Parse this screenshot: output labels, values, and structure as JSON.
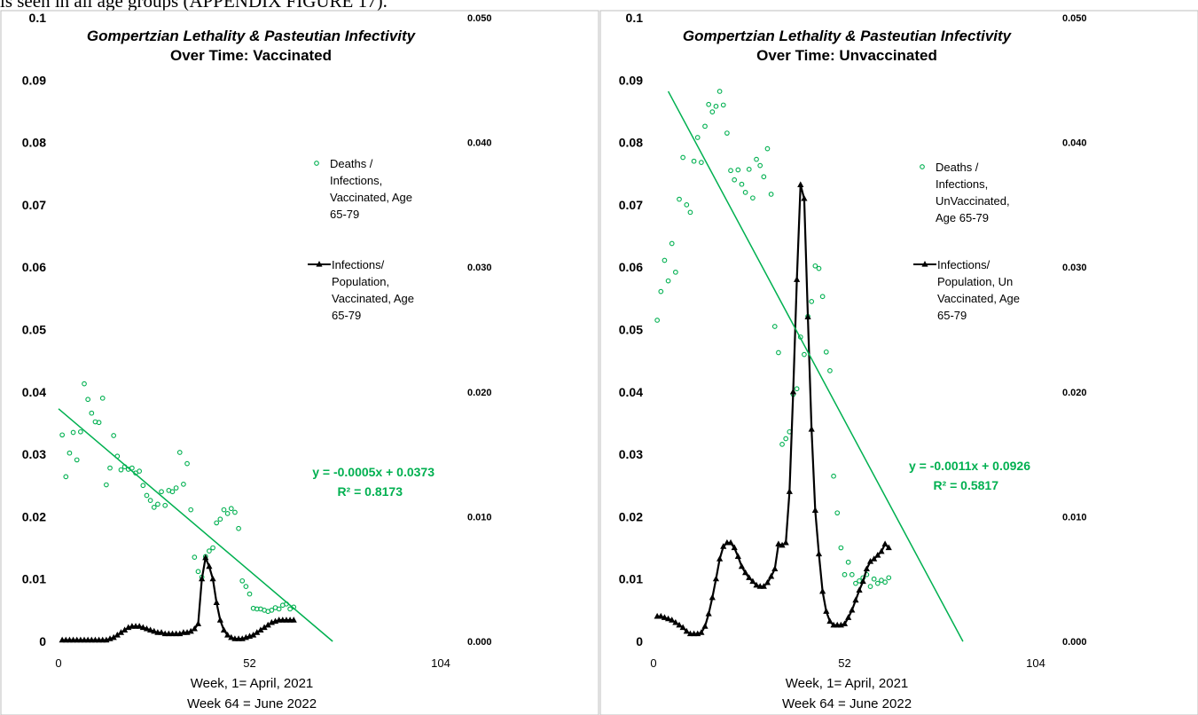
{
  "header_text": "is seen in all age groups (APPENDIX FIGURE 17).",
  "colors": {
    "green": "#00B050",
    "black": "#000000",
    "frame": "#BFBFBF"
  },
  "chart_data": [
    {
      "type": "scatter",
      "title_line1": "Gompertzian Lethality & Pasteutian Infectivity",
      "title_line2": "Over Time: Vaccinated",
      "xlabel_line1": "Week, 1= April, 2021",
      "xlabel_line2": "Week 64 = June 2022",
      "xlim": [
        0,
        104
      ],
      "x_ticks": [
        "0",
        "52",
        "104"
      ],
      "ylim_left": [
        0,
        0.1
      ],
      "y_ticks_left": [
        "0",
        "0.01",
        "0.02",
        "0.03",
        "0.04",
        "0.05",
        "0.06",
        "0.07",
        "0.08",
        "0.09",
        "0.1"
      ],
      "ylim_right": [
        0,
        0.05
      ],
      "y_ticks_right": [
        "0.000",
        "0.010",
        "0.020",
        "0.030",
        "0.040",
        "0.050"
      ],
      "legend_position": "right",
      "series": [
        {
          "name": "Deaths / Infections, Vaccinated, Age 65-79",
          "legend_lines": [
            "Deaths /",
            "Infections,",
            "Vaccinated, Age",
            "65-79"
          ],
          "kind": "scatter",
          "axis": "left",
          "color": "#00B050",
          "x": [
            1,
            2,
            3,
            4,
            5,
            6,
            7,
            8,
            9,
            10,
            11,
            12,
            13,
            14,
            15,
            16,
            17,
            18,
            19,
            20,
            21,
            22,
            23,
            24,
            25,
            26,
            27,
            28,
            29,
            30,
            31,
            32,
            33,
            34,
            35,
            36,
            37,
            38,
            39,
            40,
            41,
            42,
            43,
            44,
            45,
            46,
            47,
            48,
            49,
            50,
            51,
            52,
            53,
            54,
            55,
            56,
            57,
            58,
            59,
            60,
            61,
            62,
            63,
            64
          ],
          "y": [
            0.0331,
            0.0264,
            0.0302,
            0.0335,
            0.0291,
            0.0336,
            0.0413,
            0.0388,
            0.0366,
            0.0352,
            0.0351,
            0.039,
            0.0251,
            0.0278,
            0.033,
            0.0297,
            0.0275,
            0.028,
            0.0276,
            0.0278,
            0.027,
            0.0273,
            0.025,
            0.0234,
            0.0226,
            0.0215,
            0.022,
            0.024,
            0.0218,
            0.0242,
            0.024,
            0.0246,
            0.0303,
            0.0252,
            0.0285,
            0.0211,
            0.0135,
            0.0112,
            0.0103,
            0.0136,
            0.0145,
            0.015,
            0.019,
            0.0196,
            0.0211,
            0.0205,
            0.0213,
            0.0207,
            0.0181,
            0.0097,
            0.0088,
            0.0076,
            0.0053,
            0.0052,
            0.0052,
            0.005,
            0.0048,
            0.005,
            0.0054,
            0.0052,
            0.0058,
            0.006,
            0.0052,
            0.0055
          ]
        },
        {
          "name": "Infections/ Population, Vaccinated, Age 65-79",
          "legend_lines": [
            "Infections/",
            "Population,",
            "Vaccinated, Age",
            "65-79"
          ],
          "kind": "line",
          "axis": "right",
          "color": "#000000",
          "x": [
            1,
            2,
            3,
            4,
            5,
            6,
            7,
            8,
            9,
            10,
            11,
            12,
            13,
            14,
            15,
            16,
            17,
            18,
            19,
            20,
            21,
            22,
            23,
            24,
            25,
            26,
            27,
            28,
            29,
            30,
            31,
            32,
            33,
            34,
            35,
            36,
            37,
            38,
            39,
            40,
            41,
            42,
            43,
            44,
            45,
            46,
            47,
            48,
            49,
            50,
            51,
            52,
            53,
            54,
            55,
            56,
            57,
            58,
            59,
            60,
            61,
            62,
            63,
            64
          ],
          "y": [
            0.0001,
            0.0001,
            0.0001,
            0.0001,
            0.0001,
            0.0001,
            0.0001,
            0.0001,
            0.0001,
            0.0001,
            0.0001,
            0.0001,
            0.0001,
            0.0002,
            0.0003,
            0.0005,
            0.0007,
            0.0009,
            0.0011,
            0.0012,
            0.0012,
            0.0012,
            0.0011,
            0.001,
            0.0009,
            0.0008,
            0.0007,
            0.0007,
            0.0006,
            0.0006,
            0.0006,
            0.0006,
            0.0006,
            0.0007,
            0.0007,
            0.0008,
            0.001,
            0.0014,
            0.005,
            0.0067,
            0.006,
            0.005,
            0.0031,
            0.0017,
            0.0009,
            0.0005,
            0.0003,
            0.0002,
            0.0002,
            0.0002,
            0.0003,
            0.0004,
            0.0005,
            0.0007,
            0.0009,
            0.0011,
            0.0013,
            0.0015,
            0.0016,
            0.0017,
            0.0017,
            0.0017,
            0.0017,
            0.0017
          ]
        },
        {
          "name": "Linear trend (Deaths / Infections)",
          "kind": "trend",
          "axis": "left",
          "color": "#00B050",
          "slope": -0.0005,
          "intercept": 0.0373,
          "x_range": [
            0,
            74.6
          ],
          "equation": "y = -0.0005x + 0.0373",
          "r2": "R² = 0.8173"
        }
      ]
    },
    {
      "type": "scatter",
      "title_line1": "Gompertzian Lethality & Pasteutian Infectivity",
      "title_line2": "Over Time: Unvaccinated",
      "xlabel_line1": "Week, 1= April, 2021",
      "xlabel_line2": "Week 64 = June 2022",
      "xlim": [
        0,
        104
      ],
      "x_ticks": [
        "0",
        "52",
        "104"
      ],
      "ylim_left": [
        0,
        0.1
      ],
      "y_ticks_left": [
        "0",
        "0.01",
        "0.02",
        "0.03",
        "0.04",
        "0.05",
        "0.06",
        "0.07",
        "0.08",
        "0.09",
        "0.1"
      ],
      "ylim_right": [
        0,
        0.05
      ],
      "y_ticks_right": [
        "0.000",
        "0.010",
        "0.020",
        "0.030",
        "0.040",
        "0.050"
      ],
      "legend_position": "right",
      "series": [
        {
          "name": "Deaths / Infections, UnVaccinated, Age 65-79",
          "legend_lines": [
            "Deaths /",
            "Infections,",
            "UnVaccinated,",
            "Age 65-79"
          ],
          "kind": "scatter",
          "axis": "left",
          "color": "#00B050",
          "x": [
            1,
            2,
            3,
            4,
            5,
            6,
            7,
            8,
            9,
            10,
            11,
            12,
            13,
            14,
            15,
            16,
            17,
            18,
            19,
            20,
            21,
            22,
            23,
            24,
            25,
            26,
            27,
            28,
            29,
            30,
            31,
            32,
            33,
            34,
            35,
            36,
            37,
            38,
            39,
            40,
            41,
            42,
            43,
            44,
            45,
            46,
            47,
            48,
            49,
            50,
            51,
            52,
            53,
            54,
            55,
            56,
            57,
            58,
            59,
            60,
            61,
            62,
            63,
            64
          ],
          "y": [
            0.0515,
            0.0561,
            0.0611,
            0.0578,
            0.0638,
            0.0592,
            0.0709,
            0.0776,
            0.07,
            0.0688,
            0.077,
            0.0808,
            0.0768,
            0.0826,
            0.0861,
            0.0849,
            0.0858,
            0.0882,
            0.086,
            0.0815,
            0.0755,
            0.074,
            0.0756,
            0.0733,
            0.072,
            0.0757,
            0.0711,
            0.0773,
            0.0763,
            0.0745,
            0.079,
            0.0717,
            0.0505,
            0.0463,
            0.0316,
            0.0325,
            0.0336,
            0.0396,
            0.0405,
            0.0488,
            0.046,
            0.0521,
            0.0545,
            0.0602,
            0.0598,
            0.0553,
            0.0464,
            0.0434,
            0.0265,
            0.0206,
            0.015,
            0.0107,
            0.0127,
            0.0107,
            0.0093,
            0.0097,
            0.0102,
            0.0107,
            0.0088,
            0.01,
            0.0093,
            0.0098,
            0.0095,
            0.0102
          ]
        },
        {
          "name": "Infections/ Population, Un Vaccinated, Age 65-79",
          "legend_lines": [
            "Infections/",
            "Population, Un",
            "Vaccinated, Age",
            "65-79"
          ],
          "kind": "line",
          "axis": "right",
          "color": "#000000",
          "x": [
            1,
            2,
            3,
            4,
            5,
            6,
            7,
            8,
            9,
            10,
            11,
            12,
            13,
            14,
            15,
            16,
            17,
            18,
            19,
            20,
            21,
            22,
            23,
            24,
            25,
            26,
            27,
            28,
            29,
            30,
            31,
            32,
            33,
            34,
            35,
            36,
            37,
            38,
            39,
            40,
            41,
            42,
            43,
            44,
            45,
            46,
            47,
            48,
            49,
            50,
            51,
            52,
            53,
            54,
            55,
            56,
            57,
            58,
            59,
            60,
            61,
            62,
            63,
            64
          ],
          "y": [
            0.002,
            0.002,
            0.0019,
            0.0018,
            0.0017,
            0.0015,
            0.0013,
            0.0011,
            0.0008,
            0.0006,
            0.0006,
            0.0006,
            0.0007,
            0.0012,
            0.0022,
            0.0035,
            0.005,
            0.0066,
            0.0076,
            0.0079,
            0.0079,
            0.0075,
            0.0068,
            0.006,
            0.0055,
            0.0051,
            0.0048,
            0.0045,
            0.0044,
            0.0044,
            0.0047,
            0.0052,
            0.0058,
            0.0078,
            0.0077,
            0.0079,
            0.012,
            0.02,
            0.029,
            0.0366,
            0.0355,
            0.026,
            0.017,
            0.0105,
            0.007,
            0.004,
            0.0024,
            0.0016,
            0.0013,
            0.0013,
            0.0013,
            0.0014,
            0.0019,
            0.0025,
            0.0033,
            0.0041,
            0.0048,
            0.0058,
            0.0064,
            0.0066,
            0.0069,
            0.0072,
            0.0078,
            0.0075
          ]
        },
        {
          "name": "Linear trend (Deaths / Infections)",
          "kind": "trend",
          "axis": "left",
          "color": "#00B050",
          "slope": -0.0011,
          "intercept": 0.0926,
          "x_range": [
            4,
            84.2
          ],
          "equation": "y = -0.0011x + 0.0926",
          "r2": "R² = 0.5817"
        }
      ]
    }
  ]
}
